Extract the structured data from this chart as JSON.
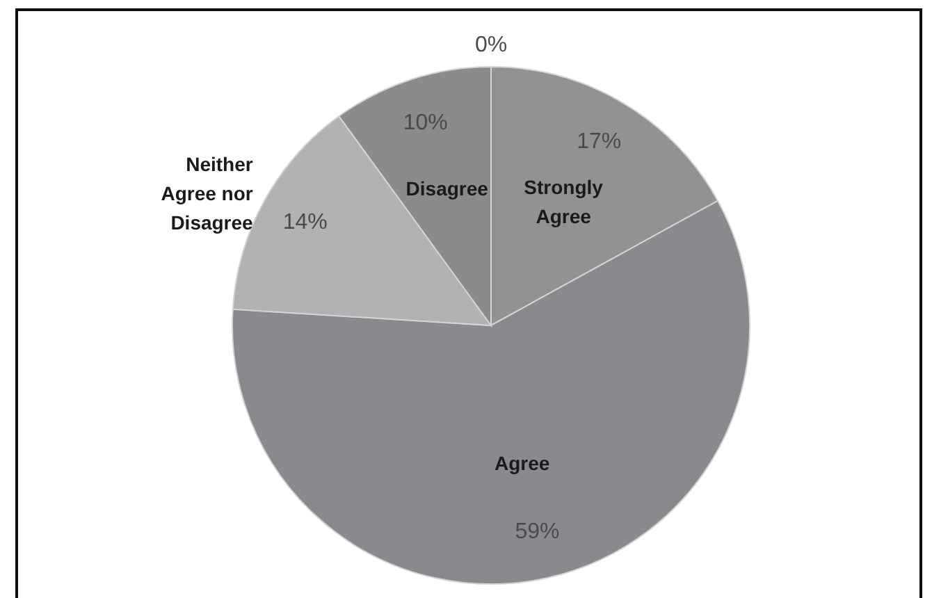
{
  "chart_data": {
    "type": "pie",
    "categories": [
      "Strongly Agree",
      "Agree",
      "Neither Agree nor Disagree",
      "Disagree",
      null
    ],
    "values": [
      17,
      59,
      14,
      10,
      0
    ],
    "colors": [
      "#929292",
      "#898a8e",
      "#b2b2b4",
      "#8b8b8b",
      "#7f7f7f"
    ],
    "value_labels": [
      "17%",
      "59%",
      "14%",
      "10%",
      "0%"
    ]
  }
}
